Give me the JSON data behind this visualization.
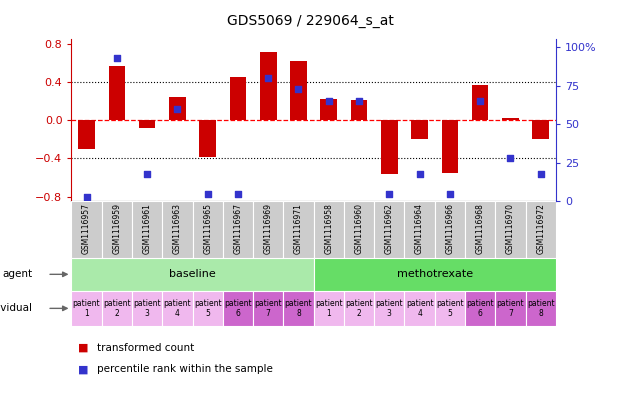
{
  "title": "GDS5069 / 229064_s_at",
  "samples": [
    "GSM1116957",
    "GSM1116959",
    "GSM1116961",
    "GSM1116963",
    "GSM1116965",
    "GSM1116967",
    "GSM1116969",
    "GSM1116971",
    "GSM1116958",
    "GSM1116960",
    "GSM1116962",
    "GSM1116964",
    "GSM1116966",
    "GSM1116968",
    "GSM1116970",
    "GSM1116972"
  ],
  "bar_values": [
    -0.3,
    0.57,
    -0.08,
    0.25,
    -0.38,
    0.45,
    0.72,
    0.62,
    0.22,
    0.21,
    -0.56,
    -0.2,
    -0.55,
    0.37,
    0.02,
    -0.2
  ],
  "dot_values": [
    3,
    93,
    18,
    60,
    5,
    5,
    80,
    73,
    65,
    65,
    5,
    18,
    5,
    65,
    28,
    18
  ],
  "bar_color": "#cc0000",
  "dot_color": "#3333cc",
  "ylim": [
    -0.85,
    0.85
  ],
  "y2lim": [
    0,
    105
  ],
  "yticks": [
    -0.8,
    -0.4,
    0.0,
    0.4,
    0.8
  ],
  "y2ticks": [
    0,
    25,
    50,
    75,
    100
  ],
  "hlines": [
    -0.4,
    0.0,
    0.4
  ],
  "hline_colors": [
    "black",
    "red",
    "black"
  ],
  "hline_styles": [
    "dotted",
    "dashed",
    "dotted"
  ],
  "groups": [
    {
      "label": "baseline",
      "start": 0,
      "end": 8,
      "color": "#aaeaaa"
    },
    {
      "label": "methotrexate",
      "start": 8,
      "end": 16,
      "color": "#66dd66"
    }
  ],
  "patients": [
    "patient\n1",
    "patient\n2",
    "patient\n3",
    "patient\n4",
    "patient\n5",
    "patient\n6",
    "patient\n7",
    "patient\n8",
    "patient\n1",
    "patient\n2",
    "patient\n3",
    "patient\n4",
    "patient\n5",
    "patient\n6",
    "patient\n7",
    "patient\n8"
  ],
  "patient_colors": [
    "#f0b8ee",
    "#f0b8ee",
    "#f0b8ee",
    "#f0b8ee",
    "#f0b8ee",
    "#cc66cc",
    "#cc66cc",
    "#cc66cc",
    "#f0b8ee",
    "#f0b8ee",
    "#f0b8ee",
    "#f0b8ee",
    "#f0b8ee",
    "#cc66cc",
    "#cc66cc",
    "#cc66cc"
  ],
  "agent_label": "agent",
  "individual_label": "individual",
  "legend_bar": "transformed count",
  "legend_dot": "percentile rank within the sample",
  "tick_color_left": "#cc0000",
  "tick_color_right": "#3333cc",
  "background_color": "#ffffff",
  "sample_bg_color": "#cccccc"
}
